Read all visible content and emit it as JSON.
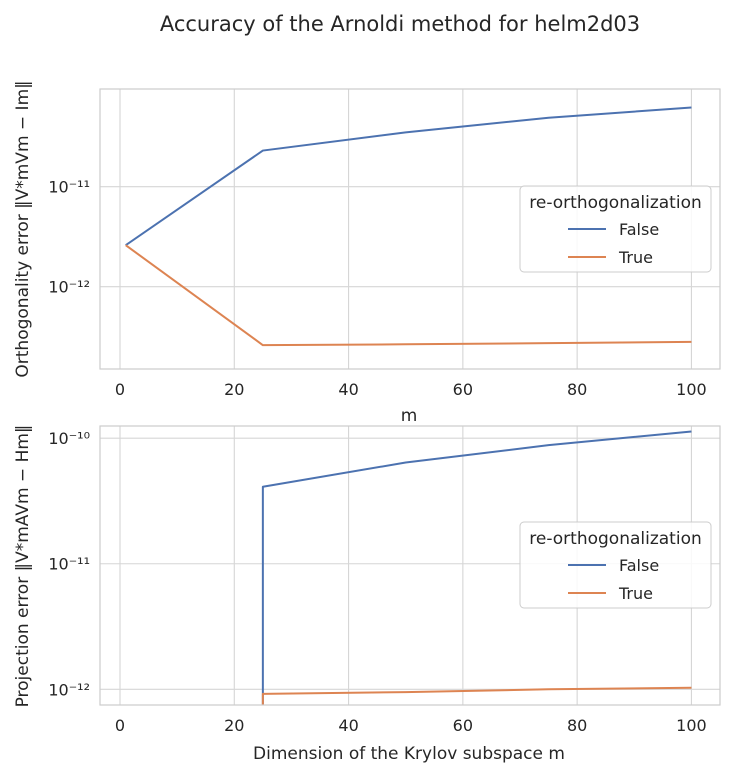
{
  "figure": {
    "title": "Accuracy of the Arnoldi method for helm2d03"
  },
  "chart_data": [
    {
      "type": "line",
      "xlabel": "m",
      "ylabel": "Orthogonality error ‖V*mVm − Im‖",
      "yscale": "log",
      "xlim": [
        -3.5,
        105
      ],
      "ylim": [
        1.5e-13,
        9.5e-11
      ],
      "xticks": [
        0,
        20,
        40,
        60,
        80,
        100
      ],
      "yticks": [
        {
          "value": 1e-11,
          "label": "10⁻¹¹"
        },
        {
          "value": 1e-12,
          "label": "10⁻¹²"
        }
      ],
      "grid": true,
      "legend": {
        "title": "re-orthogonalization",
        "placement": "right"
      },
      "series": [
        {
          "name": "False",
          "color": "#4c72b0",
          "x": [
            1,
            25,
            50,
            75,
            100
          ],
          "y": [
            2.6e-12,
            2.3e-11,
            3.5e-11,
            4.9e-11,
            6.2e-11
          ]
        },
        {
          "name": "True",
          "color": "#dd8452",
          "x": [
            1,
            25,
            50,
            75,
            100
          ],
          "y": [
            2.6e-12,
            2.6e-13,
            2.65e-13,
            2.72e-13,
            2.8e-13
          ]
        }
      ]
    },
    {
      "type": "line",
      "xlabel": "Dimension of the Krylov subspace m",
      "ylabel": "Projection error ‖V*mAVm − Hm‖",
      "yscale": "log",
      "xlim": [
        -3.5,
        105
      ],
      "ylim": [
        7.5e-13,
        1.25e-10
      ],
      "xticks": [
        0,
        20,
        40,
        60,
        80,
        100
      ],
      "yticks": [
        {
          "value": 1e-10,
          "label": "10⁻¹⁰"
        },
        {
          "value": 1e-11,
          "label": "10⁻¹¹"
        },
        {
          "value": 1e-12,
          "label": "10⁻¹²"
        }
      ],
      "grid": true,
      "legend": {
        "title": "re-orthogonalization",
        "placement": "right"
      },
      "series": [
        {
          "name": "False",
          "color": "#4c72b0",
          "x": [
            25,
            25,
            50,
            75,
            100
          ],
          "y": [
            7.5e-13,
            4.1e-11,
            6.4e-11,
            8.8e-11,
            1.13e-10
          ]
        },
        {
          "name": "True",
          "color": "#dd8452",
          "x": [
            25,
            25,
            50,
            75,
            100
          ],
          "y": [
            7.5e-13,
            9.2e-13,
            9.5e-13,
            1e-12,
            1.03e-12
          ]
        }
      ]
    }
  ]
}
